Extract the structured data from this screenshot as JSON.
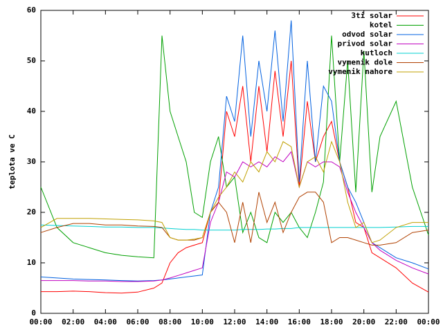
{
  "chart_data": {
    "type": "line",
    "y_label": "teplota ve C",
    "x": [
      0,
      1,
      2,
      3,
      4,
      5,
      6,
      7,
      7.5,
      8,
      8.5,
      9,
      9.5,
      10,
      10.5,
      11,
      11.5,
      12,
      12.5,
      13,
      13.5,
      14,
      14.5,
      15,
      15.5,
      16,
      16.5,
      17,
      17.5,
      18,
      18.5,
      19,
      19.5,
      20,
      20.5,
      21,
      22,
      23,
      24
    ],
    "xlim": [
      0,
      24
    ],
    "xticks": [
      {
        "value": 0,
        "label": "00:00"
      },
      {
        "value": 2,
        "label": "02:00"
      },
      {
        "value": 4,
        "label": "04:00"
      },
      {
        "value": 6,
        "label": "06:00"
      },
      {
        "value": 8,
        "label": "08:00"
      },
      {
        "value": 10,
        "label": "10:00"
      },
      {
        "value": 12,
        "label": "12:00"
      },
      {
        "value": 14,
        "label": "14:00"
      },
      {
        "value": 16,
        "label": "16:00"
      },
      {
        "value": 18,
        "label": "18:00"
      },
      {
        "value": 20,
        "label": "20:00"
      },
      {
        "value": 22,
        "label": "22:00"
      },
      {
        "value": 24,
        "label": "00:00"
      }
    ],
    "ylim": [
      0,
      60
    ],
    "yticks": [
      0,
      10,
      20,
      30,
      40,
      50,
      60
    ],
    "legend": "top-right",
    "series": [
      {
        "name": "3ti solar",
        "color": "#ff0000",
        "values": [
          4.3,
          4.3,
          4.4,
          4.3,
          4.1,
          4.0,
          4.2,
          5,
          6,
          10,
          12,
          13,
          13.5,
          14,
          20,
          22,
          40,
          35,
          45,
          30,
          45,
          32,
          48,
          35,
          50,
          25,
          42,
          30,
          35,
          38,
          30,
          25,
          18,
          17,
          12,
          11,
          9,
          6,
          4.2
        ]
      },
      {
        "name": "kotel",
        "color": "#00a000",
        "values": [
          25,
          17,
          14,
          13,
          12,
          11.5,
          11.2,
          11,
          55,
          40,
          35,
          30,
          20,
          19,
          30,
          35,
          25,
          27,
          16,
          20,
          15,
          14,
          20,
          18,
          20,
          17,
          15,
          20,
          26,
          55,
          30,
          50,
          24,
          52,
          24,
          35,
          42,
          25,
          15.5
        ]
      },
      {
        "name": "odvod solar",
        "color": "#0060e0",
        "values": [
          7.2,
          7.0,
          6.8,
          6.7,
          6.6,
          6.5,
          6.4,
          6.5,
          6.6,
          6.8,
          7,
          7.2,
          7.4,
          7.6,
          20,
          25,
          43,
          38,
          55,
          35,
          50,
          40,
          56,
          38,
          58,
          26,
          50,
          30,
          45,
          42,
          30,
          25,
          22,
          18,
          14,
          13,
          11,
          10,
          8.8
        ]
      },
      {
        "name": "privod solar",
        "color": "#c000c0",
        "values": [
          6.5,
          6.5,
          6.5,
          6.4,
          6.4,
          6.3,
          6.3,
          6.4,
          6.6,
          7,
          7.5,
          8,
          8.5,
          9,
          18,
          22,
          28,
          27,
          30,
          29,
          30,
          29,
          31,
          30,
          32,
          25,
          30,
          29,
          30,
          30,
          29,
          24,
          20,
          17,
          14,
          12.5,
          10.5,
          9,
          7.8
        ]
      },
      {
        "name": "kutloch",
        "color": "#00d0d0",
        "values": [
          17.5,
          17.4,
          17.3,
          17.2,
          17.1,
          17.1,
          17.0,
          17.0,
          16.9,
          16.8,
          16.7,
          16.6,
          16.6,
          16.5,
          16.5,
          16.5,
          16.5,
          16.5,
          16.6,
          16.6,
          16.6,
          16.7,
          16.7,
          16.8,
          16.8,
          17,
          17,
          17,
          17,
          17,
          17,
          17,
          17,
          17,
          17,
          17,
          17.1,
          17.2,
          17.2
        ]
      },
      {
        "name": "vymenik dole",
        "color": "#b04000",
        "values": [
          16,
          17,
          17.8,
          17.8,
          17.5,
          17.5,
          17.3,
          17.2,
          17,
          15,
          14.5,
          14.5,
          14.5,
          15,
          20,
          22,
          20,
          14,
          22,
          14,
          24,
          18,
          22,
          16,
          20,
          23,
          24,
          24,
          22,
          14,
          15,
          15,
          14.5,
          14,
          13.5,
          13.5,
          14,
          16,
          16.5
        ]
      },
      {
        "name": "vymenik nahore",
        "color": "#c0a000",
        "values": [
          17,
          18.8,
          18.8,
          18.8,
          18.7,
          18.6,
          18.5,
          18.3,
          18,
          15,
          14.5,
          14.5,
          14.7,
          15,
          20,
          23,
          25,
          28,
          26,
          30,
          28,
          32,
          30,
          34,
          33,
          25,
          30,
          31,
          28,
          34,
          30,
          22,
          17,
          18,
          14,
          14.5,
          17,
          18,
          18
        ]
      }
    ]
  }
}
